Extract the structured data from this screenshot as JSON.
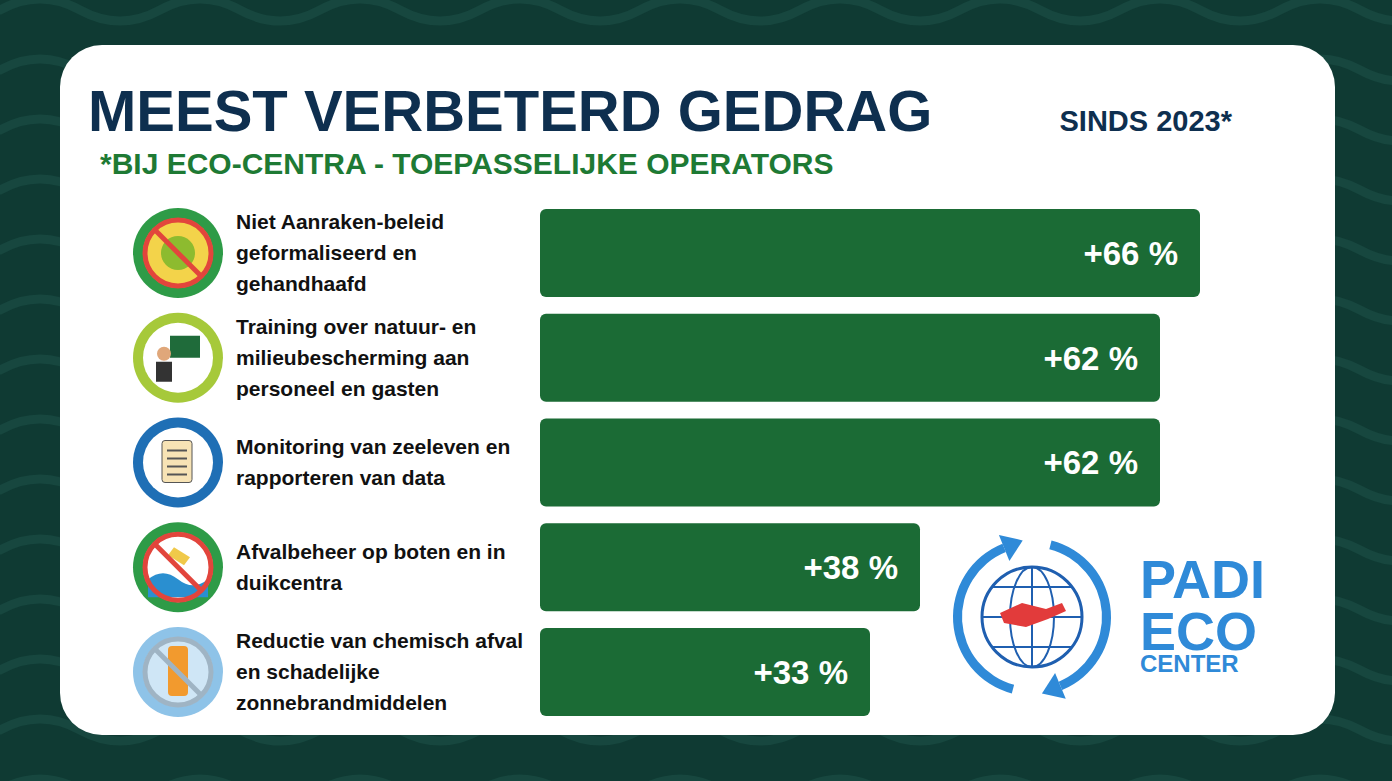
{
  "chart_data": {
    "type": "bar",
    "orientation": "horizontal",
    "title": "MEEST VERBETERD GEDRAG",
    "subtitle": "*BIJ ECO-CENTRA - TOEPASSELIJKE OPERATORS",
    "annotations": [
      "SINDS 2023*",
      "PADI",
      "ECO",
      "CENTER"
    ],
    "categories": [
      "Niet Aanraken-beleid geformaliseerd en gehandhaafd",
      "Training over natuur- en milieubescherming aan personeel en gasten",
      "Monitoring van zeeleven en rapporteren van data",
      "Afvalbeheer op boten en in duikcentra",
      "Reductie van chemisch afval en schadelijke zonnebrandmiddelen"
    ],
    "values": [
      66,
      62,
      62,
      38,
      33
    ],
    "value_labels": [
      "+66 %",
      "+62 %",
      "+62 %",
      "+38 %",
      "+33 %"
    ],
    "color": "#1b6b35",
    "data_labels": true,
    "tick_labels": false
  }
}
